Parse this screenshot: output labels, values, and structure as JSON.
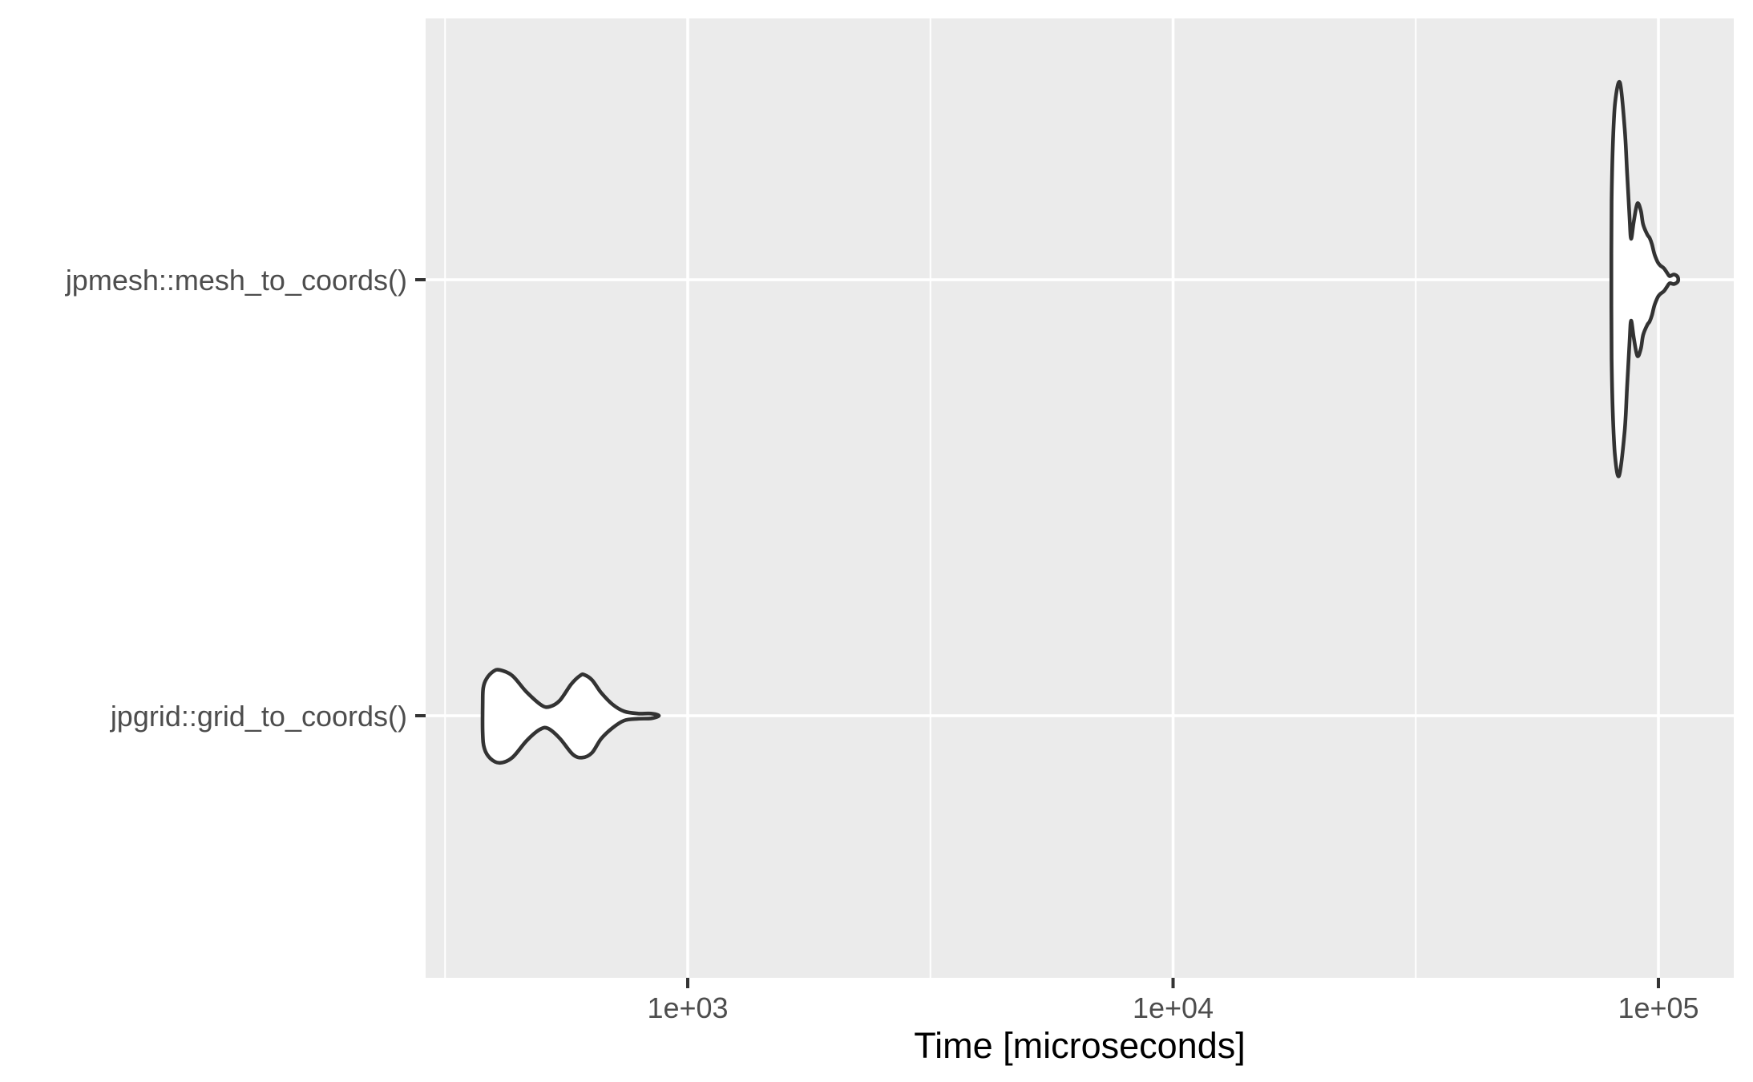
{
  "chart_data": {
    "type": "violin",
    "orientation": "horizontal",
    "title": "",
    "xlabel": "Time [microseconds]",
    "ylabel": "",
    "x_scale": "log10",
    "x_domain_us": [
      288,
      143000
    ],
    "grid": "major+minor",
    "legend": "none",
    "x_ticks": [
      {
        "value_us": 1000,
        "label": "1e+03"
      },
      {
        "value_us": 10000,
        "label": "1e+04"
      },
      {
        "value_us": 100000,
        "label": "1e+05"
      }
    ],
    "x_minor_gridlines_us": [
      316.23,
      3162.28,
      31622.78
    ],
    "categories": [
      {
        "label": "jpmesh::mesh_to_coords()"
      },
      {
        "label": "jpgrid::grid_to_coords()"
      }
    ],
    "violins": [
      {
        "category": "jpmesh::mesh_to_coords()",
        "time_range_us": [
          80000,
          110000
        ],
        "mode_us": 83000,
        "secondary_mode_us": 90500,
        "outline_t_offset": [
          [
            83000,
            0.449
          ],
          [
            81400,
            0.405
          ],
          [
            80500,
            0.3
          ],
          [
            80100,
            0.18
          ],
          [
            80000,
            0.06
          ],
          [
            80000,
            -0.06
          ],
          [
            80100,
            -0.18
          ],
          [
            80500,
            -0.3
          ],
          [
            81400,
            -0.405
          ],
          [
            83300,
            -0.452
          ],
          [
            85200,
            -0.347
          ],
          [
            86200,
            -0.246
          ],
          [
            87200,
            -0.142
          ],
          [
            87850,
            -0.094
          ],
          [
            89000,
            -0.135
          ],
          [
            90500,
            -0.175
          ],
          [
            92000,
            -0.158
          ],
          [
            93000,
            -0.127
          ],
          [
            94800,
            -0.104
          ],
          [
            95900,
            -0.096
          ],
          [
            97000,
            -0.081
          ],
          [
            98100,
            -0.059
          ],
          [
            99600,
            -0.041
          ],
          [
            100800,
            -0.033
          ],
          [
            102700,
            -0.026
          ],
          [
            104300,
            -0.015
          ],
          [
            105500,
            -0.008
          ],
          [
            107500,
            -0.012
          ],
          [
            109300,
            -0.008
          ],
          [
            109900,
            0.0
          ],
          [
            109300,
            0.006
          ],
          [
            107500,
            0.01
          ],
          [
            105500,
            0.008
          ],
          [
            104300,
            0.015
          ],
          [
            102700,
            0.026
          ],
          [
            100800,
            0.033
          ],
          [
            99600,
            0.041
          ],
          [
            98100,
            0.059
          ],
          [
            97000,
            0.081
          ],
          [
            95900,
            0.096
          ],
          [
            94800,
            0.104
          ],
          [
            93000,
            0.127
          ],
          [
            92000,
            0.158
          ],
          [
            90500,
            0.175
          ],
          [
            89000,
            0.135
          ],
          [
            87850,
            0.094
          ],
          [
            87200,
            0.142
          ],
          [
            86200,
            0.246
          ],
          [
            85200,
            0.347
          ]
        ]
      },
      {
        "category": "jpgrid::grid_to_coords()",
        "time_range_us": [
          379,
          872
        ],
        "mode_us": 410,
        "secondary_mode_us": 600,
        "outline_t_offset": [
          [
            379,
            -0.064
          ],
          [
            385,
            -0.085
          ],
          [
            398,
            -0.102
          ],
          [
            410,
            -0.105
          ],
          [
            435,
            -0.092
          ],
          [
            465,
            -0.055
          ],
          [
            500,
            -0.024
          ],
          [
            520,
            -0.021
          ],
          [
            545,
            -0.035
          ],
          [
            575,
            -0.072
          ],
          [
            600,
            -0.092
          ],
          [
            612,
            -0.094
          ],
          [
            635,
            -0.082
          ],
          [
            663,
            -0.053
          ],
          [
            700,
            -0.026
          ],
          [
            740,
            -0.01
          ],
          [
            790,
            -0.005
          ],
          [
            840,
            -0.005
          ],
          [
            872,
            0.0
          ],
          [
            840,
            0.006
          ],
          [
            790,
            0.007
          ],
          [
            740,
            0.011
          ],
          [
            700,
            0.028
          ],
          [
            663,
            0.053
          ],
          [
            635,
            0.085
          ],
          [
            607,
            0.096
          ],
          [
            580,
            0.089
          ],
          [
            545,
            0.052
          ],
          [
            515,
            0.029
          ],
          [
            495,
            0.032
          ],
          [
            465,
            0.058
          ],
          [
            435,
            0.096
          ],
          [
            410,
            0.108
          ],
          [
            392,
            0.098
          ],
          [
            381,
            0.075
          ],
          [
            378,
            0.04
          ],
          [
            378,
            -0.03
          ]
        ]
      }
    ],
    "violin_max_width_category_units": 0.9
  },
  "style": {
    "page_bg": "#FFFFFF",
    "panel_bg": "#EBEBEB",
    "grid_color": "#FFFFFF",
    "axis_text_color": "#4D4D4D",
    "axis_title_color": "#000000",
    "tick_mark_color": "#333333",
    "violin_stroke": "#333333",
    "violin_fill": "#FFFFFF"
  }
}
